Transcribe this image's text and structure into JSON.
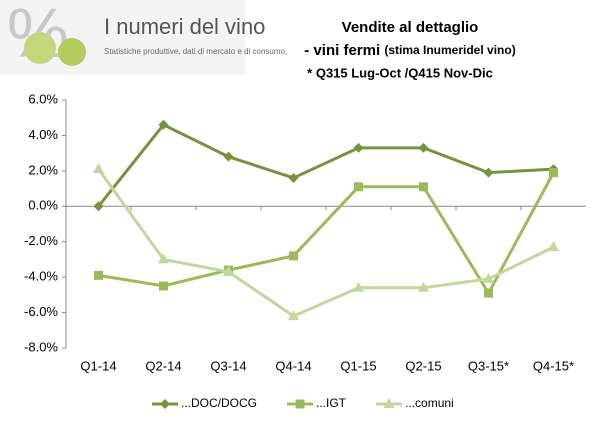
{
  "logo": {
    "title": "I numeri del vino",
    "subtitle": "Statistiche produttive, dati di mercato e di consumo,"
  },
  "chart_data": {
    "type": "line",
    "title": "Vendite al dettaglio",
    "subtitle": [
      "- vini fermi",
      "(stima Inumeridel vino)"
    ],
    "annotation": "* Q315 Lug-Oct /Q415 Nov-Dic",
    "categories": [
      "Q1-14",
      "Q2-14",
      "Q3-14",
      "Q4-14",
      "Q1-15",
      "Q2-15",
      "Q3-15*",
      "Q4-15*"
    ],
    "series": [
      {
        "name": "...DOC/DOCG",
        "color": "#77933c",
        "marker": "diamond",
        "values": [
          0.0,
          4.6,
          2.8,
          1.6,
          3.3,
          3.3,
          1.9,
          2.1
        ]
      },
      {
        "name": "...IGT",
        "color": "#9bbb59",
        "marker": "square",
        "values": [
          -3.9,
          -4.5,
          -3.6,
          -2.8,
          1.1,
          1.1,
          -4.9,
          1.9
        ]
      },
      {
        "name": "...comuni",
        "color": "#c3d69b",
        "marker": "triangle",
        "values": [
          2.1,
          -3.0,
          -3.7,
          -6.2,
          -4.6,
          -4.6,
          -4.1,
          -2.3
        ]
      }
    ],
    "ylim": [
      -8,
      6
    ],
    "yticks": [
      {
        "value": -8,
        "label": "-8.0%"
      },
      {
        "value": -6,
        "label": "-6.0%"
      },
      {
        "value": -4,
        "label": "-4.0%"
      },
      {
        "value": -2,
        "label": "-2.0%"
      },
      {
        "value": 0,
        "label": "0.0%"
      },
      {
        "value": 2,
        "label": "2.0%"
      },
      {
        "value": 4,
        "label": "4.0%"
      },
      {
        "value": 6,
        "label": "6.0%"
      }
    ],
    "grid": false,
    "legend": "bottom"
  }
}
